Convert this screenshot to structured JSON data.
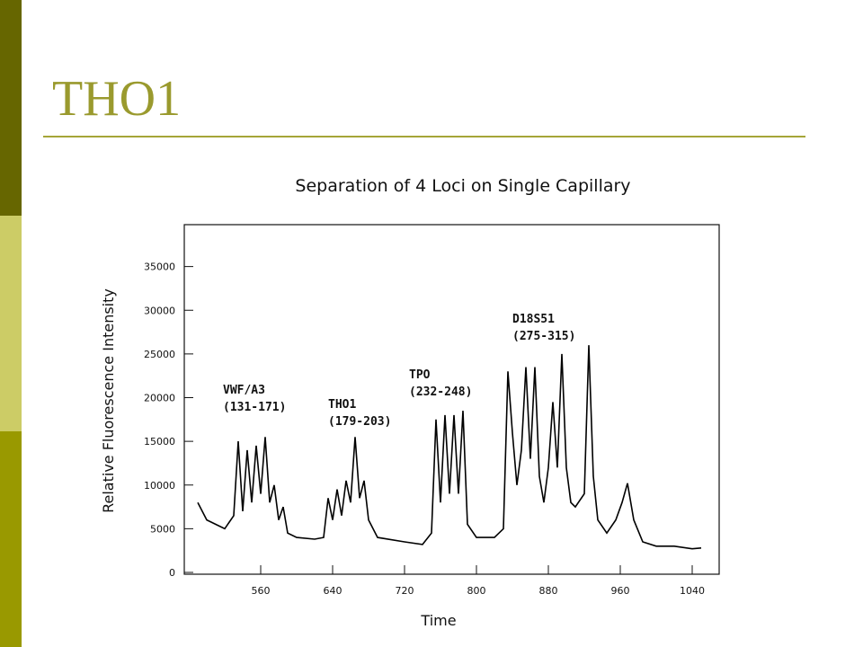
{
  "slide_title": "THO1",
  "chart_data": {
    "type": "line",
    "title": "Separation of 4 Loci on Single Capillary",
    "x_label": "Time",
    "y_label": "Relative Fluorescence Intensity",
    "x": [
      490,
      500,
      510,
      520,
      530,
      535,
      540,
      545,
      550,
      555,
      560,
      565,
      570,
      575,
      580,
      585,
      590,
      600,
      620,
      630,
      635,
      640,
      645,
      650,
      655,
      660,
      665,
      670,
      675,
      680,
      690,
      720,
      740,
      750,
      755,
      760,
      765,
      770,
      775,
      780,
      785,
      790,
      800,
      820,
      830,
      835,
      840,
      845,
      850,
      855,
      860,
      865,
      870,
      875,
      880,
      885,
      890,
      895,
      900,
      905,
      910,
      920,
      925,
      930,
      935,
      945,
      955,
      962,
      968,
      975,
      985,
      1000,
      1020,
      1040,
      1050
    ],
    "values": [
      8000,
      6000,
      5500,
      5000,
      6500,
      15000,
      7000,
      14000,
      8000,
      14500,
      9000,
      15500,
      8000,
      10000,
      6000,
      7500,
      4500,
      4000,
      3800,
      4000,
      8500,
      6000,
      9500,
      6500,
      10500,
      8000,
      15500,
      8500,
      10500,
      6000,
      4000,
      3500,
      3200,
      4500,
      17500,
      8000,
      18000,
      9000,
      18000,
      9000,
      18500,
      5500,
      4000,
      4000,
      5000,
      23000,
      16000,
      10000,
      14000,
      23500,
      13000,
      23500,
      11000,
      8000,
      12000,
      19500,
      12000,
      25000,
      12000,
      8000,
      7500,
      9000,
      26000,
      11000,
      6000,
      4500,
      6000,
      8000,
      10200,
      6000,
      3500,
      3000,
      3000,
      2700,
      2800
    ],
    "color": "#000000",
    "xlim": [
      475,
      1070
    ],
    "ylim": [
      0,
      40000
    ],
    "xticks": [
      560,
      640,
      720,
      800,
      880,
      960,
      1040
    ],
    "yticks": [
      0,
      5000,
      10000,
      15000,
      20000,
      25000,
      30000,
      35000
    ],
    "annotations": [
      {
        "label": "VWF/A3",
        "range": "(131-171)"
      },
      {
        "label": "THO1",
        "range": "(179-203)"
      },
      {
        "label": "TPO",
        "range": "(232-248)"
      },
      {
        "label": "D18S51",
        "range": "(275-315)"
      }
    ]
  }
}
